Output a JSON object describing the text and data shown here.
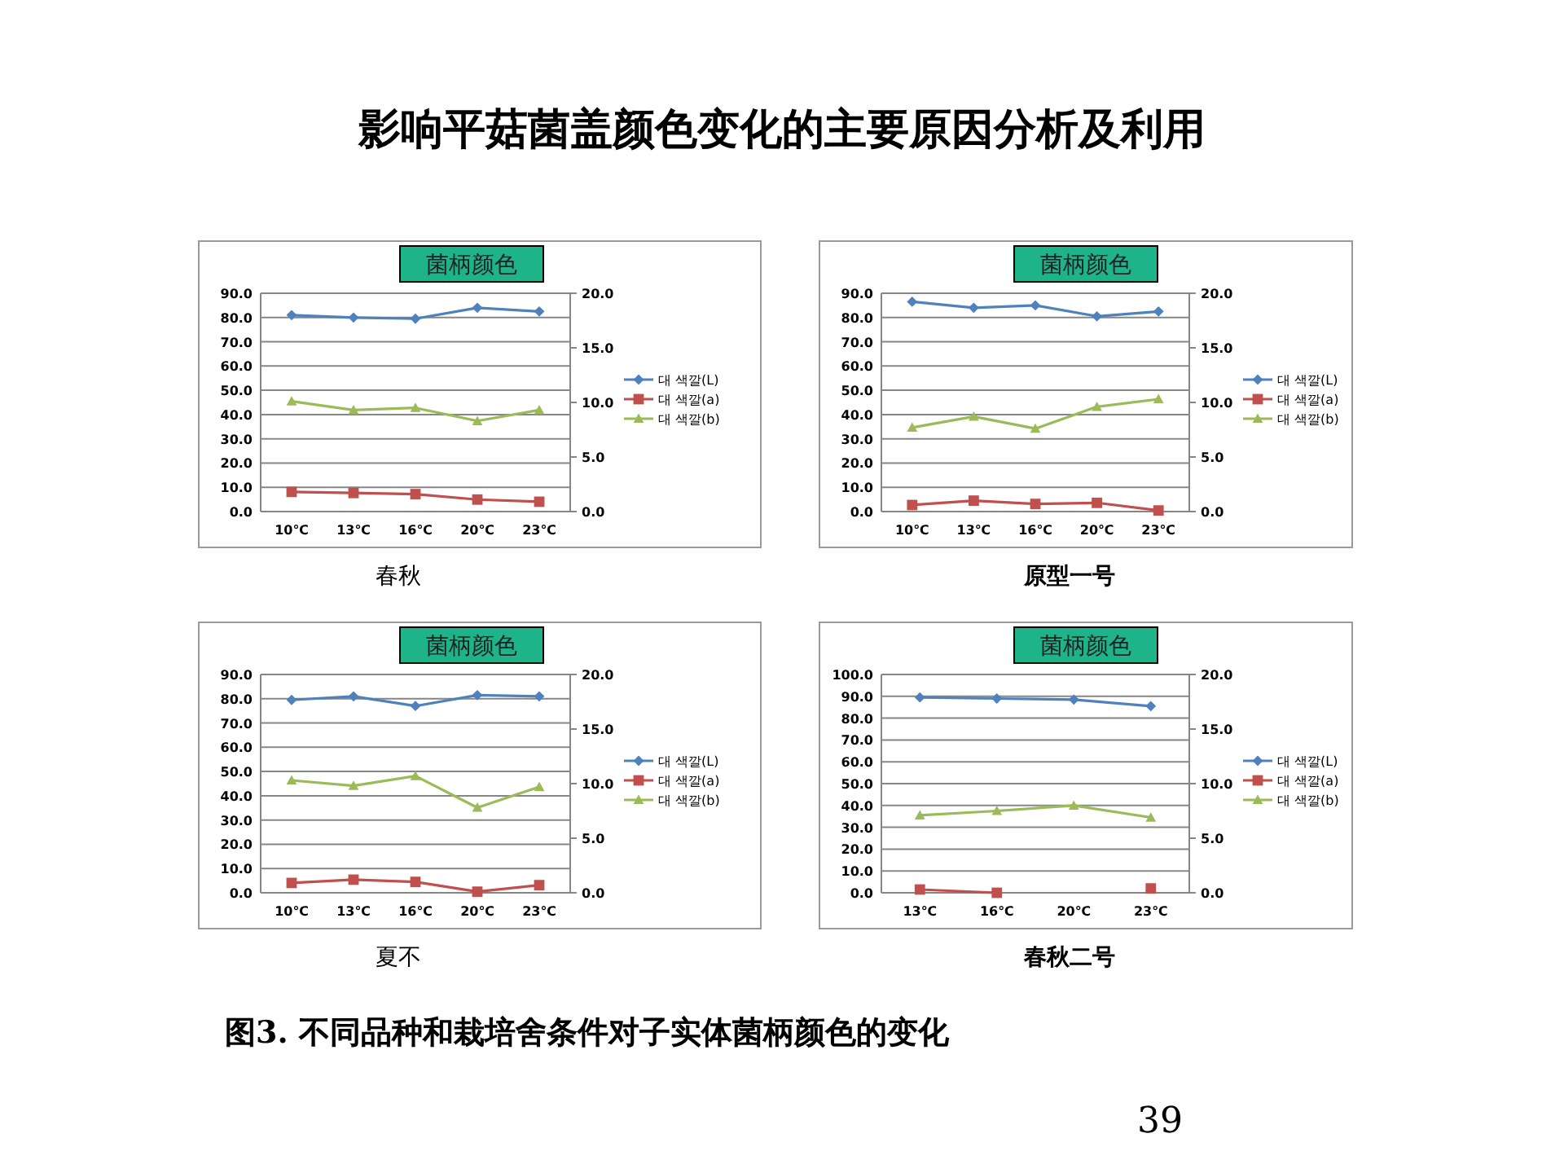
{
  "chart_data": [
    {
      "type": "line",
      "title": "菌柄颜色",
      "xlabel": "春秋",
      "annotations": [
        "影响平菇菌盖颜色变化的主要原因分析及利用",
        "图3. 不同品种和栽培舍条件对子实体菌柄颜色的变化",
        "39"
      ],
      "categories": [
        "10℃",
        "13℃",
        "16℃",
        "20℃",
        "23℃"
      ],
      "series": [
        {
          "name": "대 색깔(L)",
          "color": "#4f81bd",
          "marker": "diamond",
          "values": [
            81,
            80,
            79.5,
            84,
            82.5
          ]
        },
        {
          "name": "대 색깔(a)",
          "color": "#c0504d",
          "marker": "square",
          "axis": "y2",
          "values": [
            1.8,
            1.7,
            1.6,
            1.1,
            0.9
          ]
        },
        {
          "name": "대 색깔(b)",
          "color": "#9bbb59",
          "marker": "triangle",
          "axis": "y2",
          "values": [
            10.1,
            9.3,
            9.5,
            8.3,
            9.3
          ]
        }
      ],
      "ylim": [
        0,
        90
      ],
      "yticks": [
        {
          "value": 0,
          "label": "0.0"
        },
        {
          "value": 10,
          "label": "10.0"
        },
        {
          "value": 20,
          "label": "20.0"
        },
        {
          "value": 30,
          "label": "30.0"
        },
        {
          "value": 40,
          "label": "40.0"
        },
        {
          "value": 50,
          "label": "50.0"
        },
        {
          "value": 60,
          "label": "60.0"
        },
        {
          "value": 70,
          "label": "70.0"
        },
        {
          "value": 80,
          "label": "80.0"
        },
        {
          "value": 90,
          "label": "90.0"
        }
      ],
      "y2lim": [
        0,
        20
      ],
      "y2ticks": [
        {
          "value": 0,
          "label": "0.0"
        },
        {
          "value": 5,
          "label": "5.0"
        },
        {
          "value": 10,
          "label": "10.0"
        },
        {
          "value": 15,
          "label": "15.0"
        },
        {
          "value": 20,
          "label": "20.0"
        }
      ],
      "grid": "y",
      "legend": "right"
    },
    {
      "type": "line",
      "title": "菌柄颜色",
      "xlabel": "原型一号",
      "categories": [
        "10℃",
        "13℃",
        "16℃",
        "20℃",
        "23℃"
      ],
      "series": [
        {
          "name": "대 색깔(L)",
          "color": "#4f81bd",
          "marker": "diamond",
          "values": [
            86.5,
            84,
            85,
            80.5,
            82.5
          ]
        },
        {
          "name": "대 색깔(a)",
          "color": "#c0504d",
          "marker": "square",
          "axis": "y2",
          "values": [
            0.6,
            1.0,
            0.7,
            0.8,
            0.1
          ]
        },
        {
          "name": "대 색깔(b)",
          "color": "#9bbb59",
          "marker": "triangle",
          "axis": "y2",
          "values": [
            7.7,
            8.7,
            7.6,
            9.6,
            10.3
          ]
        }
      ],
      "ylim": [
        0,
        90
      ],
      "yticks": [
        {
          "value": 0,
          "label": "0.0"
        },
        {
          "value": 10,
          "label": "10.0"
        },
        {
          "value": 20,
          "label": "20.0"
        },
        {
          "value": 30,
          "label": "30.0"
        },
        {
          "value": 40,
          "label": "40.0"
        },
        {
          "value": 50,
          "label": "50.0"
        },
        {
          "value": 60,
          "label": "60.0"
        },
        {
          "value": 70,
          "label": "70.0"
        },
        {
          "value": 80,
          "label": "80.0"
        },
        {
          "value": 90,
          "label": "90.0"
        }
      ],
      "y2lim": [
        0,
        20
      ],
      "y2ticks": [
        {
          "value": 0,
          "label": "0.0"
        },
        {
          "value": 5,
          "label": "5.0"
        },
        {
          "value": 10,
          "label": "10.0"
        },
        {
          "value": 15,
          "label": "15.0"
        },
        {
          "value": 20,
          "label": "20.0"
        }
      ],
      "grid": "y",
      "legend": "right"
    },
    {
      "type": "line",
      "title": "菌柄颜色",
      "xlabel": "夏不",
      "categories": [
        "10℃",
        "13℃",
        "16℃",
        "20℃",
        "23℃"
      ],
      "series": [
        {
          "name": "대 색깔(L)",
          "color": "#4f81bd",
          "marker": "diamond",
          "values": [
            79.5,
            81,
            77,
            81.5,
            81
          ]
        },
        {
          "name": "대 색깔(a)",
          "color": "#c0504d",
          "marker": "square",
          "axis": "y2",
          "values": [
            0.9,
            1.2,
            1.0,
            0.1,
            0.7
          ]
        },
        {
          "name": "대 색깔(b)",
          "color": "#9bbb59",
          "marker": "triangle",
          "axis": "y2",
          "values": [
            10.3,
            9.8,
            10.7,
            7.8,
            9.7
          ]
        }
      ],
      "ylim": [
        0,
        90
      ],
      "yticks": [
        {
          "value": 0,
          "label": "0.0"
        },
        {
          "value": 10,
          "label": "10.0"
        },
        {
          "value": 20,
          "label": "20.0"
        },
        {
          "value": 30,
          "label": "30.0"
        },
        {
          "value": 40,
          "label": "40.0"
        },
        {
          "value": 50,
          "label": "50.0"
        },
        {
          "value": 60,
          "label": "60.0"
        },
        {
          "value": 70,
          "label": "70.0"
        },
        {
          "value": 80,
          "label": "80.0"
        },
        {
          "value": 90,
          "label": "90.0"
        }
      ],
      "y2lim": [
        0,
        20
      ],
      "y2ticks": [
        {
          "value": 0,
          "label": "0.0"
        },
        {
          "value": 5,
          "label": "5.0"
        },
        {
          "value": 10,
          "label": "10.0"
        },
        {
          "value": 15,
          "label": "15.0"
        },
        {
          "value": 20,
          "label": "20.0"
        }
      ],
      "grid": "y",
      "legend": "right"
    },
    {
      "type": "line",
      "title": "菌柄颜色",
      "xlabel": "春秋二号",
      "categories": [
        "13℃",
        "16℃",
        "20℃",
        "23℃"
      ],
      "series": [
        {
          "name": "대 색깔(L)",
          "color": "#4f81bd",
          "marker": "diamond",
          "values": [
            89.5,
            89,
            88.5,
            85.5
          ]
        },
        {
          "name": "대 색깔(a)",
          "color": "#c0504d",
          "marker": "square",
          "axis": "y2",
          "values": [
            0.3,
            0.0,
            null,
            0.4
          ]
        },
        {
          "name": "대 색깔(b)",
          "color": "#9bbb59",
          "marker": "triangle",
          "axis": "y2",
          "values": [
            7.1,
            7.5,
            8.0,
            6.9
          ]
        }
      ],
      "ylim": [
        0,
        100
      ],
      "yticks": [
        {
          "value": 0,
          "label": "0.0"
        },
        {
          "value": 10,
          "label": "10.0"
        },
        {
          "value": 20,
          "label": "20.0"
        },
        {
          "value": 30,
          "label": "30.0"
        },
        {
          "value": 40,
          "label": "40.0"
        },
        {
          "value": 50,
          "label": "50.0"
        },
        {
          "value": 60,
          "label": "60.0"
        },
        {
          "value": 70,
          "label": "70.0"
        },
        {
          "value": 80,
          "label": "80.0"
        },
        {
          "value": 90,
          "label": "90.0"
        },
        {
          "value": 100,
          "label": "100.0"
        }
      ],
      "y2lim": [
        0,
        20
      ],
      "y2ticks": [
        {
          "value": 0,
          "label": "0.0"
        },
        {
          "value": 5,
          "label": "5.0"
        },
        {
          "value": 10,
          "label": "10.0"
        },
        {
          "value": 15,
          "label": "15.0"
        },
        {
          "value": 20,
          "label": "20.0"
        }
      ],
      "grid": "y",
      "legend": "right"
    }
  ]
}
